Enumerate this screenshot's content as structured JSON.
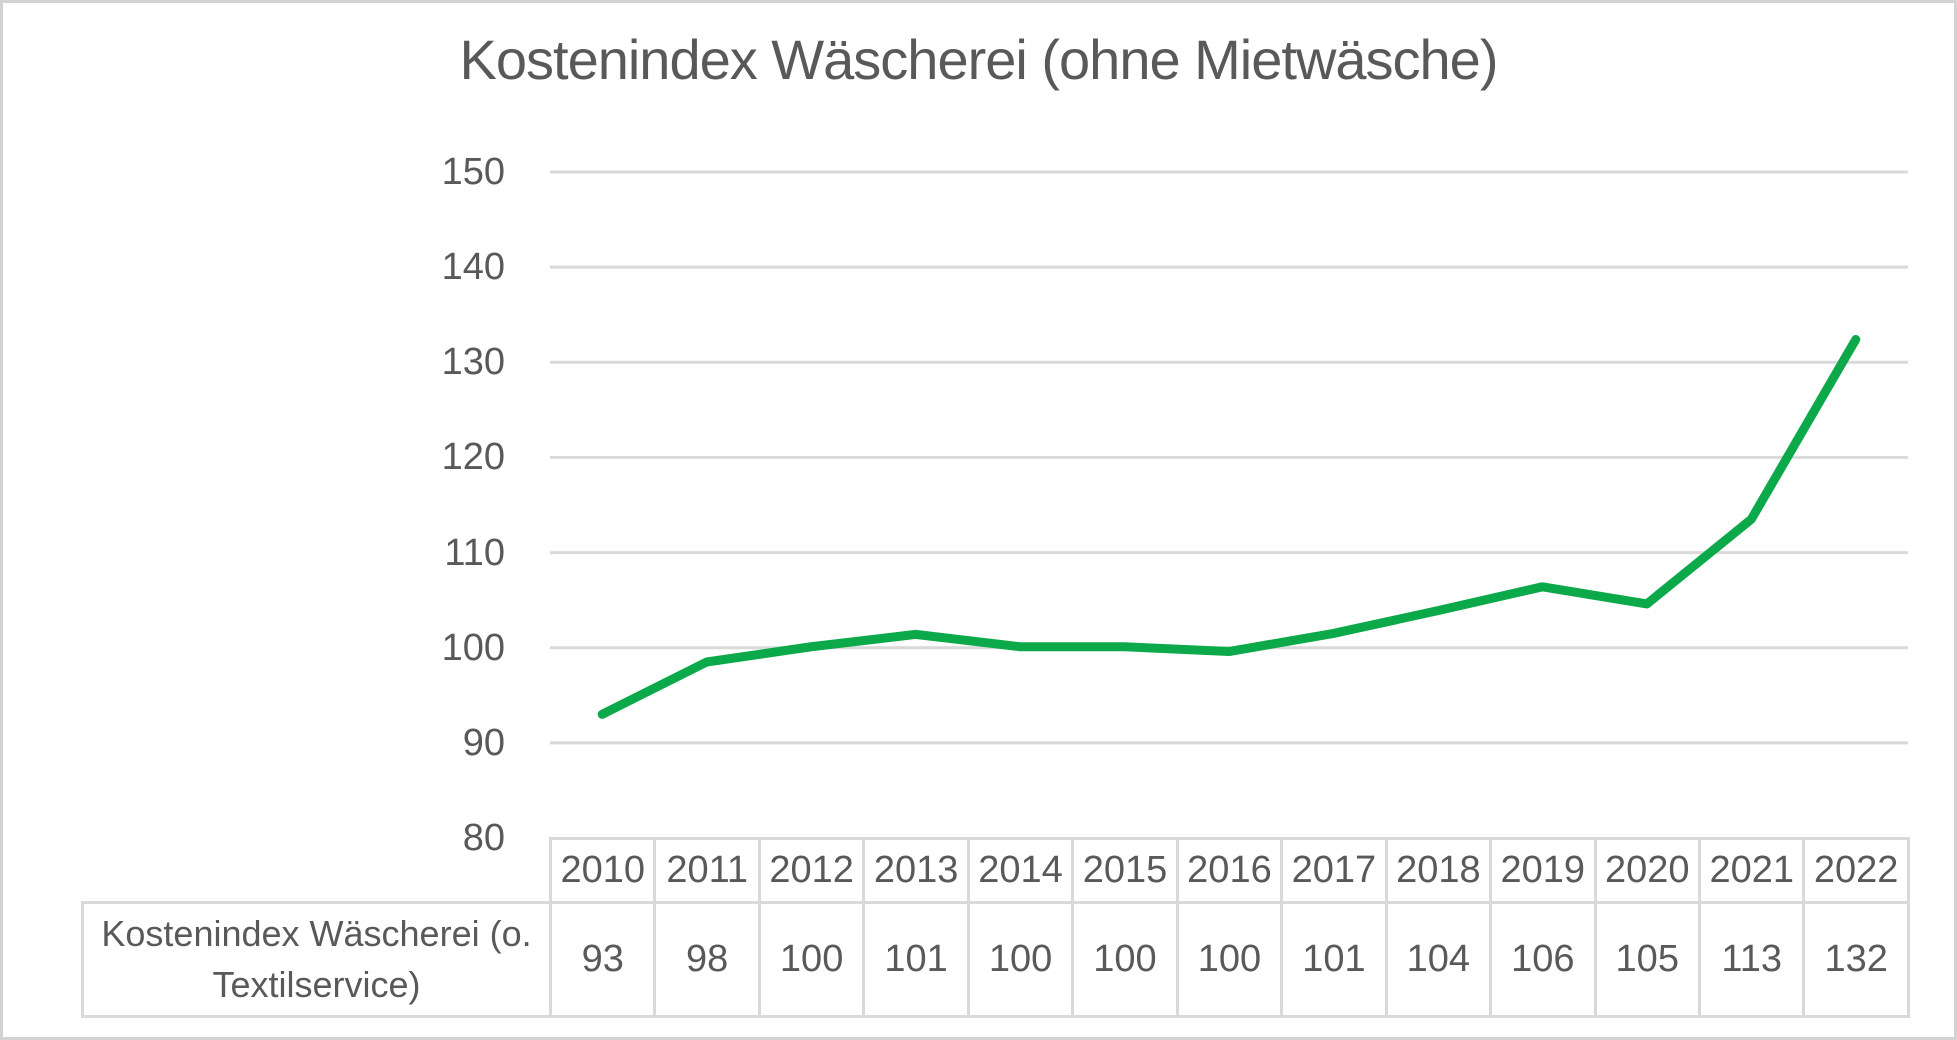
{
  "chart_data": {
    "type": "line",
    "title": "Kostenindex Wäscherei (ohne Mietwäsche)",
    "categories": [
      "2010",
      "2011",
      "2012",
      "2013",
      "2014",
      "2015",
      "2016",
      "2017",
      "2018",
      "2019",
      "2020",
      "2021",
      "2022"
    ],
    "series": [
      {
        "name": "Kostenindex Wäscherei (o. Textilservice)",
        "values": [
          93,
          98,
          100,
          101,
          100,
          100,
          100,
          101,
          104,
          106,
          105,
          113,
          132
        ],
        "line_values": [
          93,
          98.5,
          100.1,
          101.4,
          100.1,
          100.1,
          99.6,
          101.5,
          103.9,
          106.4,
          104.6,
          113.5,
          132.4
        ],
        "color": "#0CA94A"
      }
    ],
    "xlabel": "",
    "ylabel": "",
    "ylim": [
      80,
      150
    ],
    "yticks": [
      150,
      140,
      130,
      120,
      110,
      100,
      90,
      80
    ],
    "grid": true,
    "legend_position": "none",
    "colors": {
      "text": "#595959",
      "gridline": "#D9D9D9",
      "table_border": "#D9D9D9",
      "background": "#FFFFFF",
      "frame_border": "#D2D2D2"
    }
  },
  "table": {
    "row_label": "Kostenindex Wäscherei (o. Textilservice)",
    "years": [
      "2010",
      "2011",
      "2012",
      "2013",
      "2014",
      "2015",
      "2016",
      "2017",
      "2018",
      "2019",
      "2020",
      "2021",
      "2022"
    ],
    "values": [
      "93",
      "98",
      "100",
      "101",
      "100",
      "100",
      "100",
      "101",
      "104",
      "106",
      "105",
      "113",
      "132"
    ]
  }
}
